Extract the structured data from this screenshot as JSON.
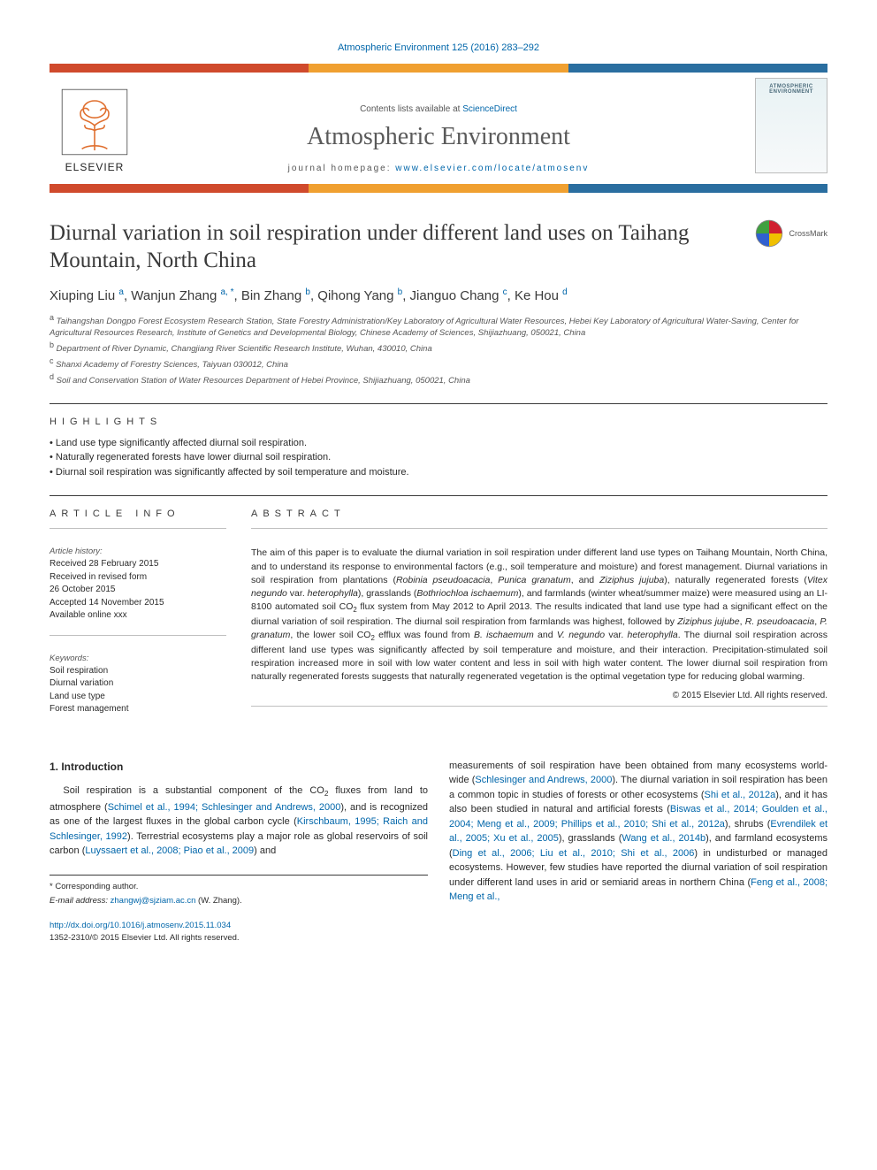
{
  "top_citation": "Atmospheric Environment 125 (2016) 283–292",
  "banner": {
    "contents_line_prefix": "Contents lists available at ",
    "contents_line_link": "ScienceDirect",
    "journal_name": "Atmospheric Environment",
    "homepage_prefix": "journal homepage: ",
    "homepage_link": "www.elsevier.com/locate/atmosenv",
    "publisher_logo_text": "ELSEVIER",
    "cover_thumb_title": "ATMOSPHERIC\nENVIRONMENT",
    "colors": {
      "bar_top": "#d04a2c",
      "bar_mid": "#f0a030",
      "bar_bot": "#2a6ea0",
      "link": "#0066aa",
      "rule": "#3a3a3a"
    }
  },
  "crossmark_label": "CrossMark",
  "title": "Diurnal variation in soil respiration under different land uses on Taihang Mountain, North China",
  "authors_html": "Xiuping Liu <sup>a</sup>, Wanjun Zhang <sup>a, *</sup>, Bin Zhang <sup>b</sup>, Qihong Yang <sup>b</sup>, Jianguo Chang <sup>c</sup>, Ke Hou <sup>d</sup>",
  "affiliations": [
    "a Taihangshan Dongpo Forest Ecosystem Research Station, State Forestry Administration/Key Laboratory of Agricultural Water Resources, Hebei Key Laboratory of Agricultural Water-Saving, Center for Agricultural Resources Research, Institute of Genetics and Developmental Biology, Chinese Academy of Sciences, Shijiazhuang, 050021, China",
    "b Department of River Dynamic, Changjiang River Scientific Research Institute, Wuhan, 430010, China",
    "c Shanxi Academy of Forestry Sciences, Taiyuan 030012, China",
    "d Soil and Conservation Station of Water Resources Department of Hebei Province, Shijiazhuang, 050021, China"
  ],
  "highlights": {
    "label": "HIGHLIGHTS",
    "items": [
      "Land use type significantly affected diurnal soil respiration.",
      "Naturally regenerated forests have lower diurnal soil respiration.",
      "Diurnal soil respiration was significantly affected by soil temperature and moisture."
    ]
  },
  "article_info": {
    "label": "ARTICLE INFO",
    "history_head": "Article history:",
    "history": "Received 28 February 2015\nReceived in revised form\n26 October 2015\nAccepted 14 November 2015\nAvailable online xxx",
    "keywords_head": "Keywords:",
    "keywords": "Soil respiration\nDiurnal variation\nLand use type\nForest management"
  },
  "abstract": {
    "label": "ABSTRACT",
    "text_html": "The aim of this paper is to evaluate the diurnal variation in soil respiration under different land use types on Taihang Mountain, North China, and to understand its response to environmental factors (e.g., soil temperature and moisture) and forest management. Diurnal variations in soil respiration from plantations (<i>Robinia pseudoacacia</i>, <i>Punica granatum</i>, and <i>Ziziphus jujuba</i>), naturally regenerated forests (<i>Vitex negundo</i> var. <i>heterophylla</i>), grasslands (<i>Bothriochloa ischaemum</i>), and farmlands (winter wheat/summer maize) were measured using an LI-8100 automated soil CO<sub>2</sub> flux system from May 2012 to April 2013. The results indicated that land use type had a significant effect on the diurnal variation of soil respiration. The diurnal soil respiration from farmlands was highest, followed by <i>Ziziphus jujube</i>, <i>R. pseudoacacia</i>, <i>P. granatum</i>, the lower soil CO<sub>2</sub> efflux was found from <i>B. ischaemum</i> and <i>V. negundo</i> var. <i>heterophylla</i>. The diurnal soil respiration across different land use types was significantly affected by soil temperature and moisture, and their interaction. Precipitation-stimulated soil respiration increased more in soil with low water content and less in soil with high water content. The lower diurnal soil respiration from naturally regenerated forests suggests that naturally regenerated vegetation is the optimal vegetation type for reducing global warming.",
    "copyright": "© 2015 Elsevier Ltd. All rights reserved."
  },
  "intro": {
    "heading": "1. Introduction",
    "col1_html": "Soil respiration is a substantial component of the CO<sub>2</sub> fluxes from land to atmosphere (<a>Schimel et al., 1994; Schlesinger and Andrews, 2000</a>), and is recognized as one of the largest fluxes in the global carbon cycle (<a>Kirschbaum, 1995; Raich and Schlesinger, 1992</a>). Terrestrial ecosystems play a major role as global reservoirs of soil carbon (<a>Luyssaert et al., 2008; Piao et al., 2009</a>) and",
    "col2_html": "measurements of soil respiration have been obtained from many ecosystems world-wide (<a>Schlesinger and Andrews, 2000</a>). The diurnal variation in soil respiration has been a common topic in studies of forests or other ecosystems (<a>Shi et al., 2012a</a>), and it has also been studied in natural and artificial forests (<a>Biswas et al., 2014; Goulden et al., 2004; Meng et al., 2009; Phillips et al., 2010; Shi et al., 2012a</a>), shrubs (<a>Evrendilek et al., 2005; Xu et al., 2005</a>), grasslands (<a>Wang et al., 2014b</a>), and farmland ecosystems (<a>Ding et al., 2006; Liu et al., 2010; Shi et al., 2006</a>) in undisturbed or managed ecosystems. However, few studies have reported the diurnal variation of soil respiration under different land uses in arid or semiarid areas in northern China (<a>Feng et al., 2008; Meng et al.,</a>"
  },
  "footnote": {
    "corr": "* Corresponding author.",
    "email_label": "E-mail address:",
    "email": "zhangwj@sjziam.ac.cn",
    "email_who": "(W. Zhang)."
  },
  "doi": {
    "link": "http://dx.doi.org/10.1016/j.atmosenv.2015.11.034",
    "issn_line": "1352-2310/© 2015 Elsevier Ltd. All rights reserved."
  }
}
